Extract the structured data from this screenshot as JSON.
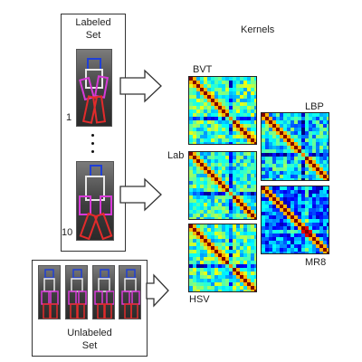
{
  "labeled_set": {
    "title_line1": "Labeled",
    "title_line2": "Set",
    "index_first": "1",
    "index_last": "10"
  },
  "unlabeled_set": {
    "title_line1": "Unlabeled",
    "title_line2": "Set"
  },
  "kernels": {
    "title": "Kernels",
    "labels": {
      "bvt": "BVT",
      "lab": "Lab",
      "hsv": "HSV",
      "lbp": "LBP",
      "mr8": "MR8"
    }
  },
  "colors": {
    "head_box": "#1f3fd6",
    "torso_box": "#e8e8e8",
    "upper_limb": "#d83ad8",
    "lower_limb": "#e22b2b",
    "heatmap_low": "#0a2fa8",
    "heatmap_mid": "#3fd0d8",
    "heatmap_high": "#f0a21c",
    "diagonal": "#8b0b0b"
  },
  "icons": [
    "arrow-right-icon"
  ]
}
